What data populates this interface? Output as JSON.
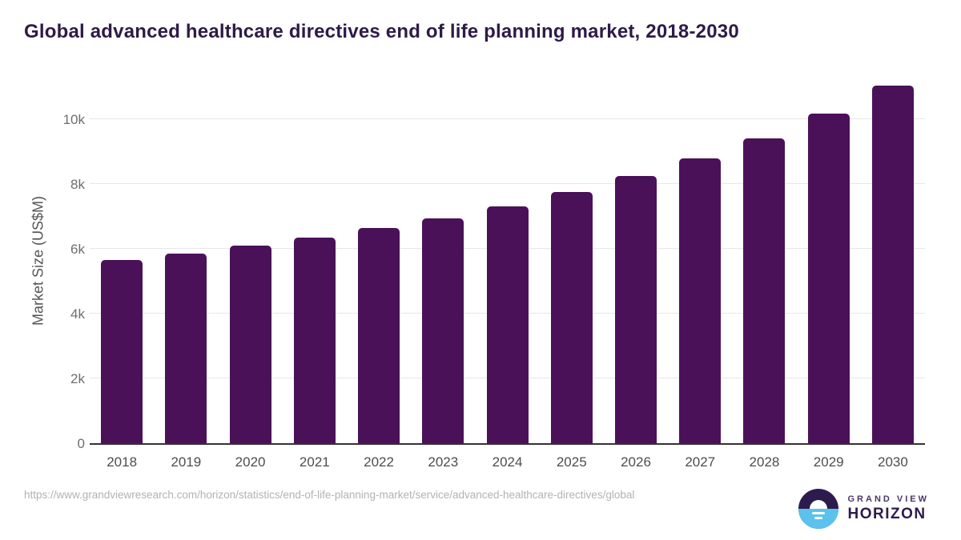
{
  "title": "Global advanced healthcare directives end of life planning market, 2018-2030",
  "chart_data": {
    "type": "bar",
    "title": "Global advanced healthcare directives end of life planning market, 2018-2030",
    "categories": [
      "2018",
      "2019",
      "2020",
      "2021",
      "2022",
      "2023",
      "2024",
      "2025",
      "2026",
      "2027",
      "2028",
      "2029",
      "2030"
    ],
    "values": [
      5650,
      5850,
      6100,
      6350,
      6650,
      6950,
      7320,
      7750,
      8250,
      8800,
      9400,
      10180,
      11030
    ],
    "xlabel": "",
    "ylabel": "Market Size (US$M)",
    "ylim": [
      0,
      11350
    ],
    "yticks": [
      {
        "label": "0",
        "value": 0
      },
      {
        "label": "2k",
        "value": 2000
      },
      {
        "label": "4k",
        "value": 4000
      },
      {
        "label": "6k",
        "value": 6000
      },
      {
        "label": "8k",
        "value": 8000
      },
      {
        "label": "10k",
        "value": 10000
      }
    ],
    "grid": true,
    "legend": false,
    "bar_color": "#4a1159"
  },
  "colors": {
    "title": "#2e1a47",
    "bar": "#4a1159",
    "axis_line": "#333333",
    "gridline": "#e7e7e7",
    "tick_label": "#6e6e6e",
    "logo_purple": "#2d1b4e",
    "logo_blue": "#5bc2ee"
  },
  "footer": {
    "source_url": "https://www.grandviewresearch.com/horizon/statistics/end-of-life-planning-market/service/advanced-healthcare-directives/global",
    "logo": {
      "line1": "GRAND VIEW",
      "line2": "HORIZON"
    }
  }
}
